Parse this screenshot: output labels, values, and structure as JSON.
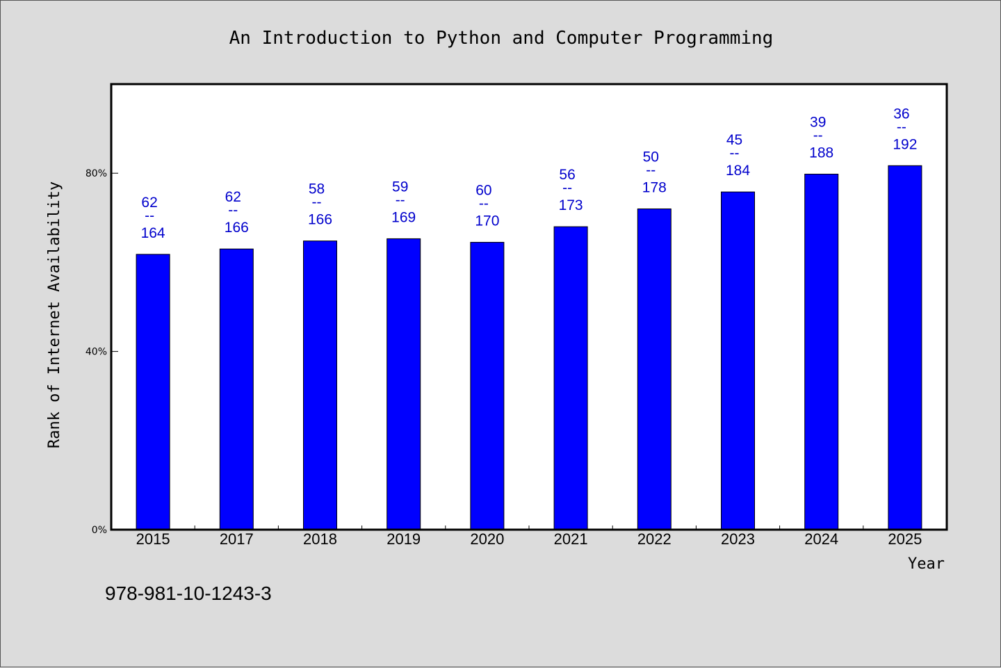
{
  "chart_data": {
    "type": "bar",
    "title": "An Introduction to Python and Computer Programming",
    "xlabel": "Year",
    "ylabel": "Rank of Internet Availability",
    "categories": [
      "2015",
      "2017",
      "2018",
      "2019",
      "2020",
      "2021",
      "2022",
      "2023",
      "2024",
      "2025"
    ],
    "values": [
      61.8,
      63.0,
      64.8,
      65.3,
      64.5,
      68.0,
      72.0,
      75.8,
      79.8,
      81.7
    ],
    "value_unit": "%",
    "ylim": [
      0,
      100
    ],
    "yticks": [
      0,
      40,
      80
    ],
    "ytick_labels": [
      "0%",
      "40%",
      "80%"
    ],
    "bar_labels": [
      {
        "rank": "62",
        "sep": "--",
        "total": "164"
      },
      {
        "rank": "62",
        "sep": "--",
        "total": "166"
      },
      {
        "rank": "58",
        "sep": "--",
        "total": "166"
      },
      {
        "rank": "59",
        "sep": "--",
        "total": "169"
      },
      {
        "rank": "60",
        "sep": "--",
        "total": "170"
      },
      {
        "rank": "56",
        "sep": "--",
        "total": "173"
      },
      {
        "rank": "50",
        "sep": "--",
        "total": "178"
      },
      {
        "rank": "45",
        "sep": "--",
        "total": "184"
      },
      {
        "rank": "39",
        "sep": "--",
        "total": "188"
      },
      {
        "rank": "36",
        "sep": "--",
        "total": "192"
      }
    ],
    "bar_color": "#0000ff",
    "label_color": "#0000cc",
    "grid": false,
    "legend": "none"
  },
  "footer": {
    "isbn": "978-981-10-1243-3"
  },
  "colors": {
    "background": "#dcdcdc",
    "plot_background": "#ffffff"
  }
}
